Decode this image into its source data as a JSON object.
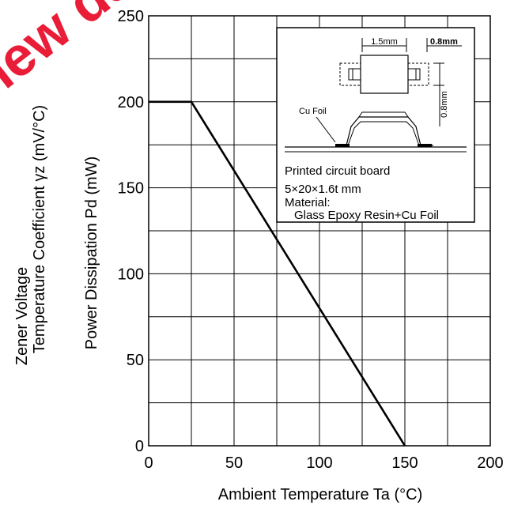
{
  "watermark": {
    "text": "new ds",
    "color": "#e8112d"
  },
  "chart_data": {
    "type": "line",
    "xlabel": "Ambient Temperature Ta (°C)",
    "ylabel": "Power Dissipation   Pd   (mW)",
    "ylabel_left": [
      "Zener Voltage",
      "Temperature Coefficient   γz  (mV/°C)"
    ],
    "xlim": [
      0,
      200
    ],
    "ylim": [
      0,
      250
    ],
    "xticks": [
      0,
      50,
      100,
      150,
      200
    ],
    "yticks": [
      0,
      50,
      100,
      150,
      200,
      250
    ],
    "grid": true,
    "grid_x_minor_step": 25,
    "grid_y_minor_step": 25,
    "series": [
      {
        "x": [
          0,
          25,
          150
        ],
        "y": [
          200,
          200,
          0
        ],
        "color": "#000000"
      }
    ],
    "inset": {
      "dim_width": "1.5mm",
      "dim_gap": "0.8mm",
      "dim_height": "0.8mm",
      "foil_label": "Cu Foil",
      "board_title": "Printed circuit board",
      "board_size": "5×20×1.6t mm",
      "material_label": "Material:",
      "material_value": "Glass Epoxy Resin+Cu Foil"
    }
  }
}
